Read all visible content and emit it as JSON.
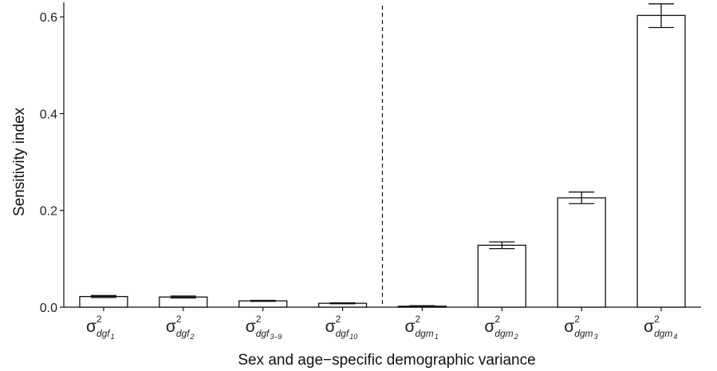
{
  "chart_data": {
    "type": "bar",
    "title": "",
    "xlabel": "Sex and age−specific demographic variance",
    "ylabel": "Sensitivity index",
    "ylim": [
      0,
      0.63
    ],
    "yticks": [
      "0.0",
      "0.2",
      "0.4",
      "0.6"
    ],
    "grid": false,
    "legend": "none",
    "divider_after_index": 3,
    "categories": [
      {
        "symbol": "σ",
        "sup": "2",
        "sub": "dgf",
        "subsub": "1"
      },
      {
        "symbol": "σ",
        "sup": "2",
        "sub": "dgf",
        "subsub": "2"
      },
      {
        "symbol": "σ",
        "sup": "2",
        "sub": "dgf",
        "subsub": "3–9"
      },
      {
        "symbol": "σ",
        "sup": "2",
        "sub": "dgf",
        "subsub": "10"
      },
      {
        "symbol": "σ",
        "sup": "2",
        "sub": "dgm",
        "subsub": "1"
      },
      {
        "symbol": "σ",
        "sup": "2",
        "sub": "dgm",
        "subsub": "2"
      },
      {
        "symbol": "σ",
        "sup": "2",
        "sub": "dgm",
        "subsub": "3"
      },
      {
        "symbol": "σ",
        "sup": "2",
        "sub": "dgm",
        "subsub": "4"
      }
    ],
    "values": [
      0.022,
      0.021,
      0.013,
      0.008,
      0.002,
      0.128,
      0.226,
      0.603
    ],
    "error_low": [
      0.02,
      0.019,
      0.012,
      0.007,
      0.001,
      0.121,
      0.214,
      0.578
    ],
    "error_high": [
      0.024,
      0.023,
      0.014,
      0.009,
      0.003,
      0.135,
      0.238,
      0.627
    ],
    "colors": {
      "bar_fill": "#ffffff",
      "bar_stroke": "#111111",
      "axis": "#111111"
    }
  }
}
